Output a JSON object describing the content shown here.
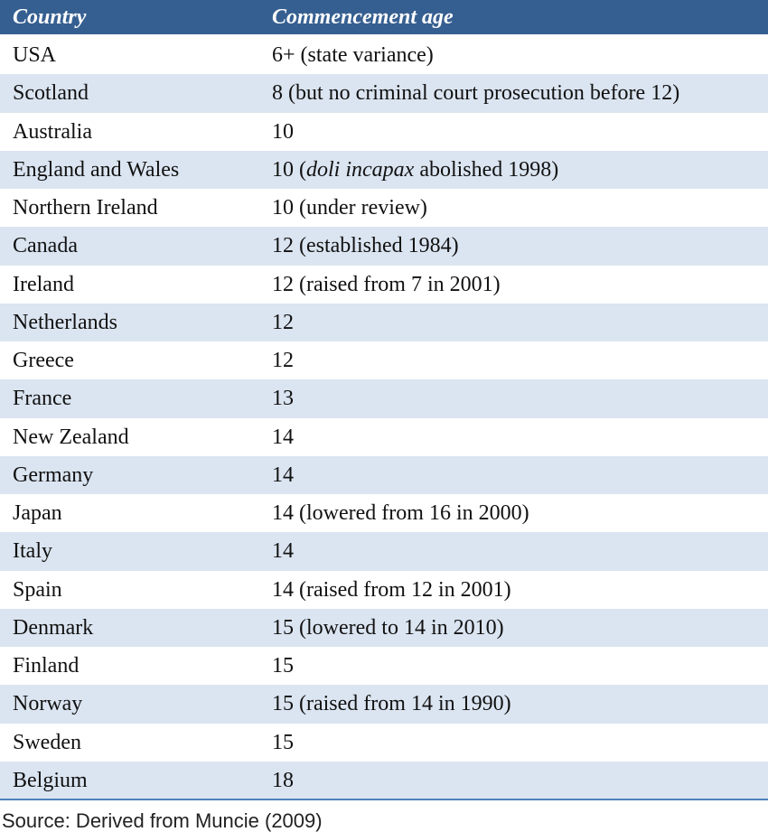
{
  "table": {
    "header": [
      "Country",
      "Commencement age"
    ],
    "rows": [
      [
        "USA",
        "6+ (state variance)"
      ],
      [
        "Scotland",
        "8 (but no criminal court prosecution before 12)"
      ],
      [
        "Australia",
        "10"
      ],
      [
        "England and Wales",
        [
          {
            "text": "10 ("
          },
          {
            "text": "doli incapax",
            "italic": true
          },
          {
            "text": " abolished 1998)"
          }
        ]
      ],
      [
        "Northern Ireland",
        "10 (under review)"
      ],
      [
        "Canada",
        "12 (established 1984)"
      ],
      [
        "Ireland",
        "12 (raised from 7 in 2001)"
      ],
      [
        "Netherlands",
        "12"
      ],
      [
        "Greece",
        "12"
      ],
      [
        "France",
        "13"
      ],
      [
        "New Zealand",
        "14"
      ],
      [
        "Germany",
        "14"
      ],
      [
        "Japan",
        "14 (lowered from 16 in 2000)"
      ],
      [
        "Italy",
        "14"
      ],
      [
        "Spain",
        "14 (raised from 12 in 2001)"
      ],
      [
        "Denmark",
        "15 (lowered to 14 in 2010)"
      ],
      [
        "Finland",
        "15"
      ],
      [
        "Norway",
        "15 (raised from 14 in 1990)"
      ],
      [
        "Sweden",
        "15"
      ],
      [
        "Belgium",
        "18"
      ]
    ]
  },
  "source": "Source: Derived from Muncie (2009)"
}
